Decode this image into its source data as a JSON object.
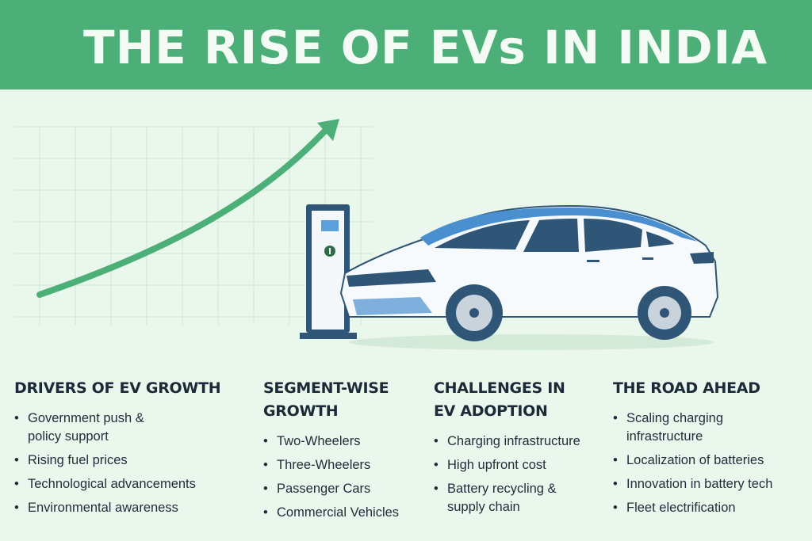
{
  "title": "THE RISE OF EVs IN INDIA",
  "colors": {
    "header": "#4daf78",
    "background": "#eaf7ec",
    "arrow": "#4daf78",
    "car_accent": "#4a8fd0"
  },
  "illustration": {
    "icons": [
      "growth-arrow-icon",
      "charging-station-icon",
      "electric-car-icon"
    ]
  },
  "sections": [
    {
      "heading": "DRIVERS OF EV GROWTH",
      "items": [
        "Government push & policy support",
        "Rising fuel prices",
        "Technological advancements",
        "Environmental awareness"
      ]
    },
    {
      "heading": "SEGMENT-WISE GROWTH",
      "items": [
        "Two-Wheelers",
        "Three-Wheelers",
        "Passenger Cars",
        "Commercial Vehicles"
      ]
    },
    {
      "heading": "CHALLENGES IN EV ADOPTION",
      "items": [
        "Charging infrastructure",
        "High upfront cost",
        "Battery recycling & supply chain"
      ]
    },
    {
      "heading": "THE ROAD AHEAD",
      "items": [
        "Scaling charging infrastructure",
        "Localization of batteries",
        "Innovation in battery tech",
        "Fleet electrification"
      ]
    }
  ]
}
